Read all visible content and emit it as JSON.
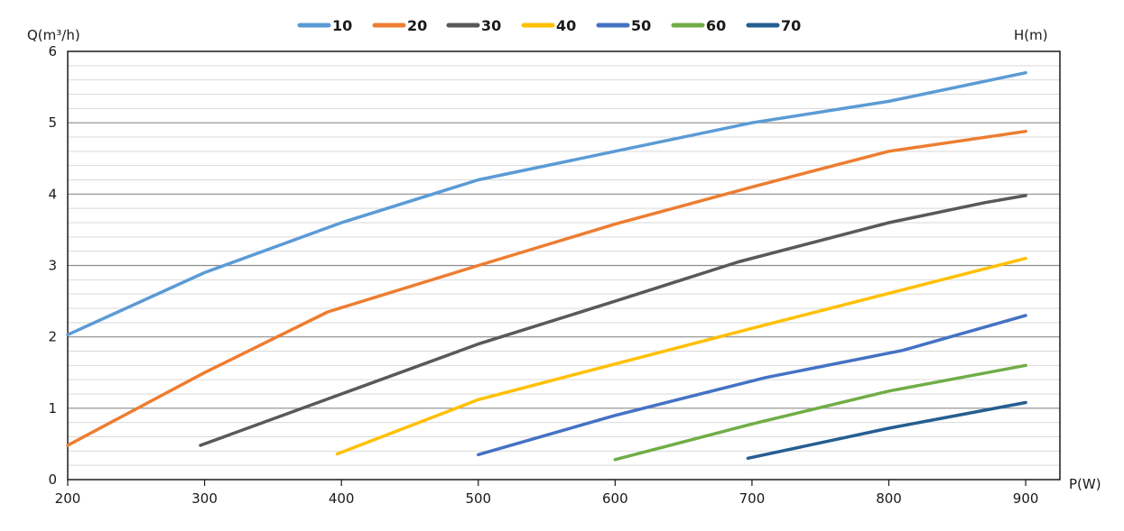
{
  "chart_data": {
    "type": "line",
    "xlabel": "P(W)",
    "ylabel": "Q(m³/h)",
    "legend_title": "H(m)",
    "legend_position": "top",
    "xlim": [
      200,
      925
    ],
    "ylim": [
      0,
      6
    ],
    "xticks": [
      200,
      300,
      400,
      500,
      600,
      700,
      800,
      900
    ],
    "yticks": [
      0,
      1,
      2,
      3,
      4,
      5,
      6
    ],
    "major_grid": [
      1,
      2,
      3,
      4,
      5
    ],
    "minor_grid_step": 0.2,
    "series": [
      {
        "name": "10",
        "color": "#5b9bd5",
        "x": [
          200,
          300,
          400,
          500,
          600,
          700,
          800,
          900
        ],
        "y": [
          2.03,
          2.9,
          3.6,
          4.2,
          4.6,
          5.0,
          5.3,
          5.7
        ]
      },
      {
        "name": "20",
        "color": "#ed7d31",
        "x": [
          200,
          300,
          390,
          500,
          600,
          700,
          800,
          900
        ],
        "y": [
          0.48,
          1.5,
          2.35,
          3.0,
          3.58,
          4.1,
          4.6,
          4.88
        ]
      },
      {
        "name": "30",
        "color": "#595959",
        "x": [
          297,
          400,
          500,
          600,
          690,
          800,
          870,
          900
        ],
        "y": [
          0.48,
          1.2,
          1.9,
          2.5,
          3.05,
          3.6,
          3.88,
          3.98
        ]
      },
      {
        "name": "40",
        "color": "#ffc000",
        "x": [
          397,
          500,
          700,
          900
        ],
        "y": [
          0.36,
          1.12,
          2.12,
          3.1
        ]
      },
      {
        "name": "50",
        "color": "#4472c4",
        "x": [
          500,
          600,
          710,
          810,
          900
        ],
        "y": [
          0.35,
          0.9,
          1.43,
          1.81,
          2.3
        ]
      },
      {
        "name": "60",
        "color": "#70ad47",
        "x": [
          600,
          700,
          800,
          900
        ],
        "y": [
          0.28,
          0.78,
          1.24,
          1.6
        ]
      },
      {
        "name": "70",
        "color": "#255e91",
        "x": [
          697,
          800,
          900
        ],
        "y": [
          0.3,
          0.72,
          1.08
        ]
      }
    ]
  }
}
